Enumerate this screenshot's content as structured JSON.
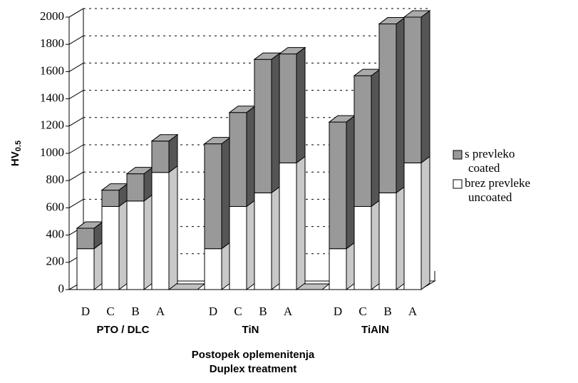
{
  "chart_data": {
    "type": "bar3d_stacked",
    "y_label": {
      "text": "HV",
      "subscript": "0.5"
    },
    "x_label": [
      "Postopek oplemenitenja",
      "Duplex treatment"
    ],
    "groups": [
      "PTO / DLC",
      "TiN",
      "TiAlN"
    ],
    "categories": [
      [
        "D",
        "C",
        "B",
        "A"
      ],
      [
        "D",
        "C",
        "B",
        "A"
      ],
      [
        "D",
        "C",
        "B",
        "A"
      ]
    ],
    "series": [
      {
        "name": "brez prevleke\nuncoated",
        "color": "#ffffff",
        "values": [
          [
            300,
            610,
            650,
            860
          ],
          [
            300,
            610,
            710,
            930
          ],
          [
            300,
            610,
            710,
            930
          ]
        ]
      },
      {
        "name": "s prevleko\ncoated",
        "color": "#999999",
        "values": [
          [
            150,
            120,
            200,
            230
          ],
          [
            770,
            690,
            980,
            800
          ],
          [
            930,
            960,
            1240,
            1070
          ]
        ]
      }
    ],
    "ylim": [
      0,
      2000
    ],
    "yticks": [
      0,
      200,
      400,
      600,
      800,
      1000,
      1200,
      1400,
      1600,
      1800,
      2000
    ],
    "grid": true,
    "legend": "right"
  }
}
